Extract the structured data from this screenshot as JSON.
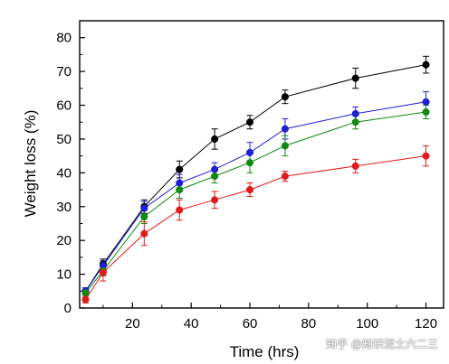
{
  "chart_data": {
    "type": "line",
    "xlabel": "Time (hrs)",
    "ylabel": "Weight loss (%)",
    "xlim": [
      2,
      126
    ],
    "ylim": [
      0,
      85
    ],
    "xticks": [
      20,
      40,
      60,
      80,
      100,
      120
    ],
    "yticks": [
      0,
      10,
      20,
      30,
      40,
      50,
      60,
      70,
      80
    ],
    "x": [
      4,
      10,
      24,
      36,
      48,
      60,
      72,
      96,
      120
    ],
    "grid": false,
    "series": [
      {
        "color": "#000000",
        "values": [
          5,
          13,
          30,
          41,
          50,
          55,
          62.5,
          68,
          72
        ],
        "errors": [
          1,
          1.5,
          2,
          2.5,
          3,
          2,
          2,
          3,
          2.5
        ]
      },
      {
        "color": "#1f1fd6",
        "values": [
          5,
          12.5,
          29.5,
          37,
          41,
          46,
          53,
          57.5,
          61
        ],
        "errors": [
          1,
          1.5,
          2,
          2.5,
          2,
          3,
          3,
          2,
          3
        ]
      },
      {
        "color": "#0f8a0f",
        "values": [
          4.5,
          11,
          27,
          35,
          39,
          43,
          48,
          55,
          58
        ],
        "errors": [
          1,
          1.5,
          2,
          2.5,
          2,
          3,
          3,
          2,
          2
        ]
      },
      {
        "color": "#e01b1b",
        "values": [
          2.5,
          10.5,
          22,
          29,
          32,
          35,
          39,
          42,
          45
        ],
        "errors": [
          1,
          2.5,
          3.5,
          3,
          2.5,
          2,
          1.5,
          2,
          3
        ]
      }
    ]
  },
  "watermark": "知乎 @知识泥土六二三"
}
